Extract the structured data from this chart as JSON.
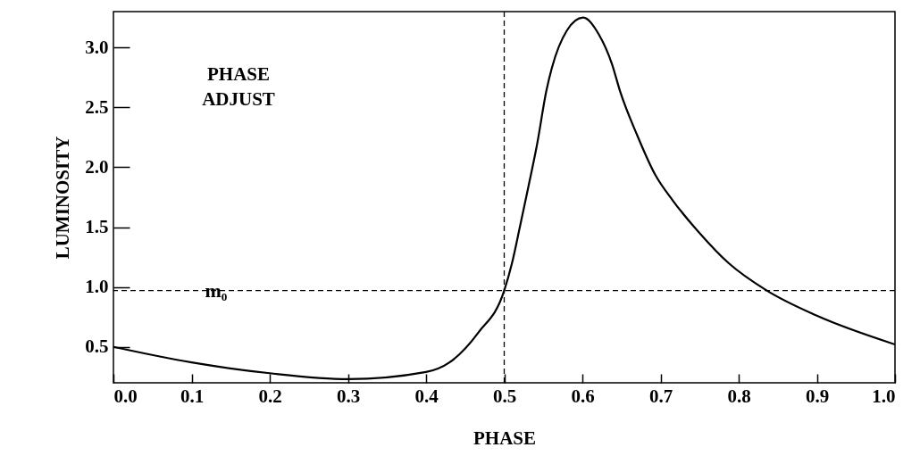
{
  "chart_data": {
    "type": "line",
    "xlabel": "PHASE",
    "ylabel": "LUMINOSITY",
    "x": [
      0,
      0.1,
      0.2,
      0.3,
      0.4,
      0.43,
      0.467,
      0.5,
      0.51,
      0.52,
      0.531,
      0.542,
      0.554,
      0.561,
      0.58,
      0.601,
      0.621,
      0.638,
      0.648,
      0.67,
      0.693,
      0.716,
      0.75,
      0.787,
      0.836,
      0.9,
      1.0
    ],
    "series": [
      {
        "color": "#000000",
        "values": [
          0.5,
          0.37,
          0.28,
          0.23,
          0.29,
          0.37,
          0.62,
          0.97,
          1.2,
          1.5,
          1.84,
          2.19,
          2.64,
          2.83,
          3.14,
          3.25,
          3.11,
          2.86,
          2.64,
          2.27,
          1.94,
          1.72,
          1.45,
          1.2,
          0.97,
          0.76,
          0.52
        ]
      }
    ],
    "xlim": [
      0,
      1
    ],
    "ylim": [
      0.2,
      3.3
    ],
    "xticks": [
      {
        "value": 0,
        "label": "0.0"
      },
      0.1,
      0.2,
      0.3,
      0.4,
      0.5,
      0.6,
      0.7,
      0.8,
      0.9,
      {
        "value": 1,
        "label": "1.0"
      }
    ],
    "yticks": [
      0.5,
      {
        "value": 1,
        "label": "1.0"
      },
      1.5,
      {
        "value": 2,
        "label": "2.0"
      },
      2.5,
      {
        "value": 3,
        "label": "3.0"
      }
    ],
    "ref_lines": [
      {
        "axis": "y",
        "value": 0.97,
        "label": "m₀",
        "line_style": "dashed"
      },
      {
        "axis": "x",
        "value": 0.5,
        "line_style": "dashed"
      }
    ],
    "annotations": [
      "PHASE\nADJUST"
    ],
    "grid": false,
    "marker": "none",
    "line_style": "solid"
  }
}
